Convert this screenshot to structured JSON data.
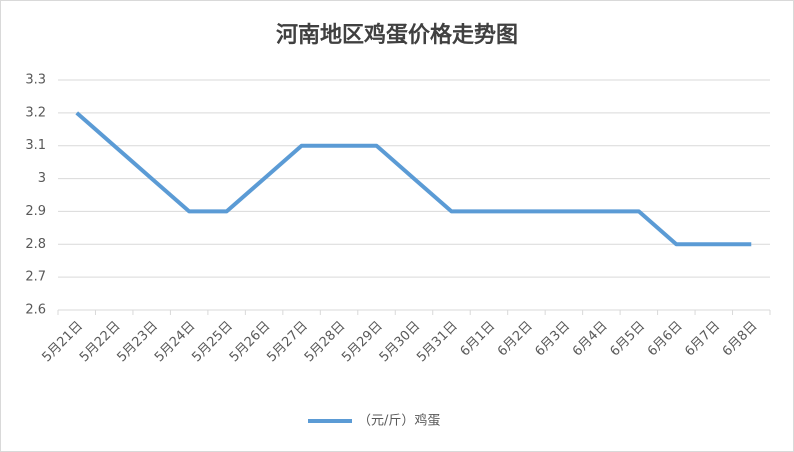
{
  "chart_data": {
    "type": "line",
    "title": "河南地区鸡蛋价格走势图",
    "categories": [
      "5月21日",
      "5月22日",
      "5月23日",
      "5月24日",
      "5月25日",
      "5月26日",
      "5月27日",
      "5月28日",
      "5月29日",
      "5月30日",
      "5月31日",
      "6月1日",
      "6月2日",
      "6月3日",
      "6月4日",
      "6月5日",
      "6月6日",
      "6月7日",
      "6月8日"
    ],
    "series": [
      {
        "name": "（元/斤）鸡蛋",
        "color": "#5b9bd5",
        "values": [
          3.2,
          3.1,
          3.0,
          2.9,
          2.9,
          3.0,
          3.1,
          3.1,
          3.1,
          3.0,
          2.9,
          2.9,
          2.9,
          2.9,
          2.9,
          2.9,
          2.8,
          2.8,
          2.8
        ]
      }
    ],
    "ylim": [
      2.6,
      3.3
    ],
    "yticks": [
      2.6,
      2.7,
      2.8,
      2.9,
      3,
      3.1,
      3.2,
      3.3
    ],
    "grid": true,
    "legend": "bottom"
  }
}
